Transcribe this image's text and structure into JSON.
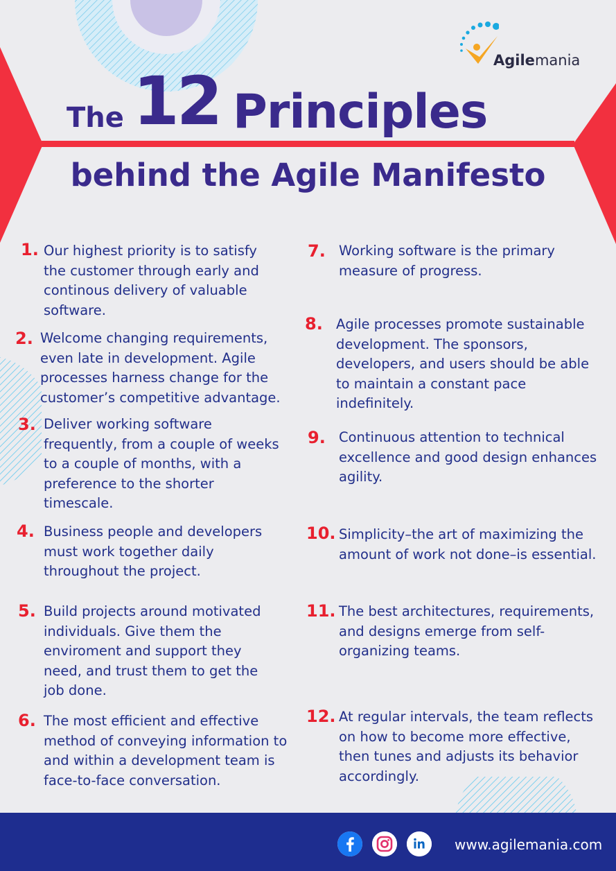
{
  "brand": {
    "name_bold": "Agile",
    "name_light": "mania",
    "logo_icon": "dotted-arc-person-icon"
  },
  "title": {
    "prefix": "The",
    "number": "12",
    "word": "Principles",
    "subtitle": "behind the Agile Manifesto"
  },
  "principles": [
    {
      "num": "1.",
      "text": "Our highest priority is to satisfy the customer through early and continous delivery of valuable software."
    },
    {
      "num": "2.",
      "text": "Welcome changing requirements, even late in development. Agile processes harness change for the customer’s competitive advantage."
    },
    {
      "num": "3.",
      "text": "Deliver working software frequently, from a couple of weeks to a couple of months, with a preference to the shorter timescale."
    },
    {
      "num": "4.",
      "text": "Business people and developers must work together daily throughout the project."
    },
    {
      "num": "5.",
      "text": "Build projects around motivated individuals. Give them the enviroment and support they need, and trust them to get the job done."
    },
    {
      "num": "6.",
      "text": "The most efficient and effective method of conveying information to and within a development team is face-to-face conversation."
    },
    {
      "num": "7.",
      "text": "Working software is the primary measure of progress."
    },
    {
      "num": "8.",
      "text": "Agile processes promote sustainable development. The sponsors, developers, and users should be able to maintain a constant pace indefinitely."
    },
    {
      "num": "9.",
      "text": "Continuous attention to technical excellence and good design enhances agility."
    },
    {
      "num": "10.",
      "text": "Simplicity–the art of maximizing the amount of work not done–is essential."
    },
    {
      "num": "11.",
      "text": "The best architectures, requirements, and designs emerge from self-organizing teams."
    },
    {
      "num": "12.",
      "text": "At regular intervals, the team reflects on how to become more effective, then tunes and adjusts its behavior accordingly."
    }
  ],
  "footer": {
    "url": "www.agilemania.com",
    "social": [
      {
        "icon": "facebook-icon",
        "color": "#1877f2"
      },
      {
        "icon": "instagram-icon",
        "color": "#e1306c"
      },
      {
        "icon": "linkedin-icon",
        "color": "#0a66c2"
      }
    ]
  },
  "colors": {
    "accent": "#e8202f",
    "title": "#3a2a8c",
    "text": "#222f8a",
    "footer": "#1e2d8f",
    "background": "#ececef"
  }
}
